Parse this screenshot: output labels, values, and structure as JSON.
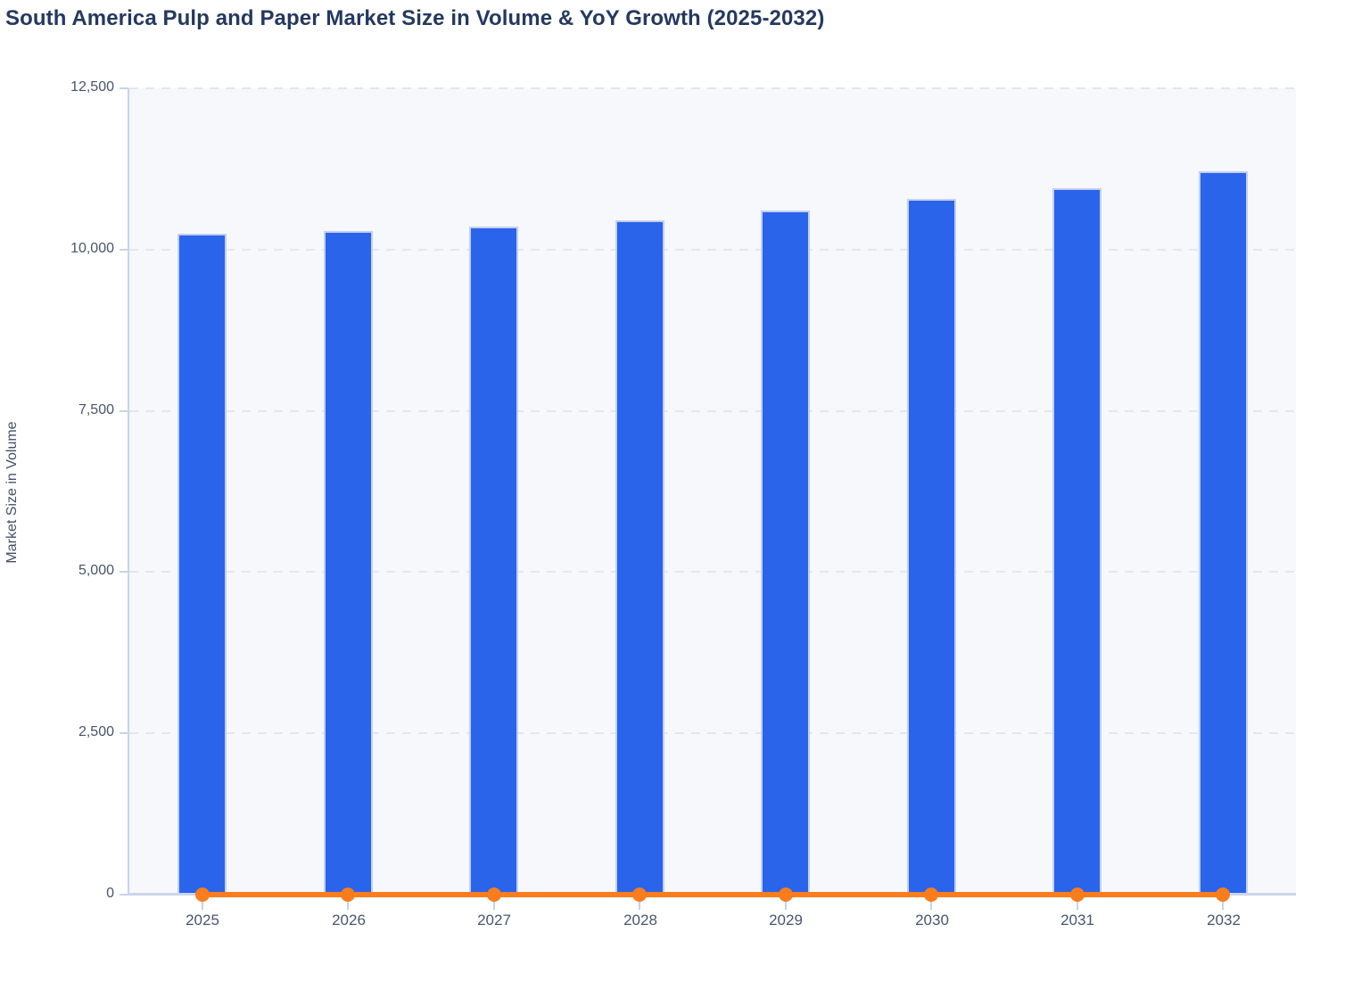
{
  "page": {
    "background_color": "#ffffff"
  },
  "chart_data": {
    "type": "bar",
    "title": "South America Pulp and Paper Market Size in Volume & YoY Growth (2025-2032)",
    "ylabel": "Market Size in Volume",
    "xlabel": "",
    "categories": [
      "2025",
      "2026",
      "2027",
      "2028",
      "2029",
      "2030",
      "2031",
      "2032"
    ],
    "series": [
      {
        "name": "Market Size in Volume",
        "type": "bar",
        "color": "#2a64ea",
        "values": [
          10240,
          10290,
          10360,
          10460,
          10600,
          10790,
          10950,
          11210
        ]
      },
      {
        "name": "YoY Growth",
        "type": "line",
        "color": "#f97d1c",
        "values": [
          0,
          0,
          0,
          0,
          0,
          0,
          0,
          0
        ]
      }
    ],
    "ylim": [
      0,
      12500
    ],
    "ytick_labels_top_to_bottom": [
      "12,500",
      "10,000",
      "7,500",
      "5,000",
      "2,500",
      "0"
    ],
    "grid": "horizontal-dashed",
    "legend": "none"
  },
  "colors": {
    "title": "#25395f",
    "axis_label": "#49546c",
    "axis_line": "#c9d2ea",
    "gridline": "#e3e6ee",
    "plot_background": "#f7f8fb",
    "bar_fill": "#2a64ea",
    "bar_stroke": "#c3cfee",
    "line_orange": "#f97d1c"
  }
}
